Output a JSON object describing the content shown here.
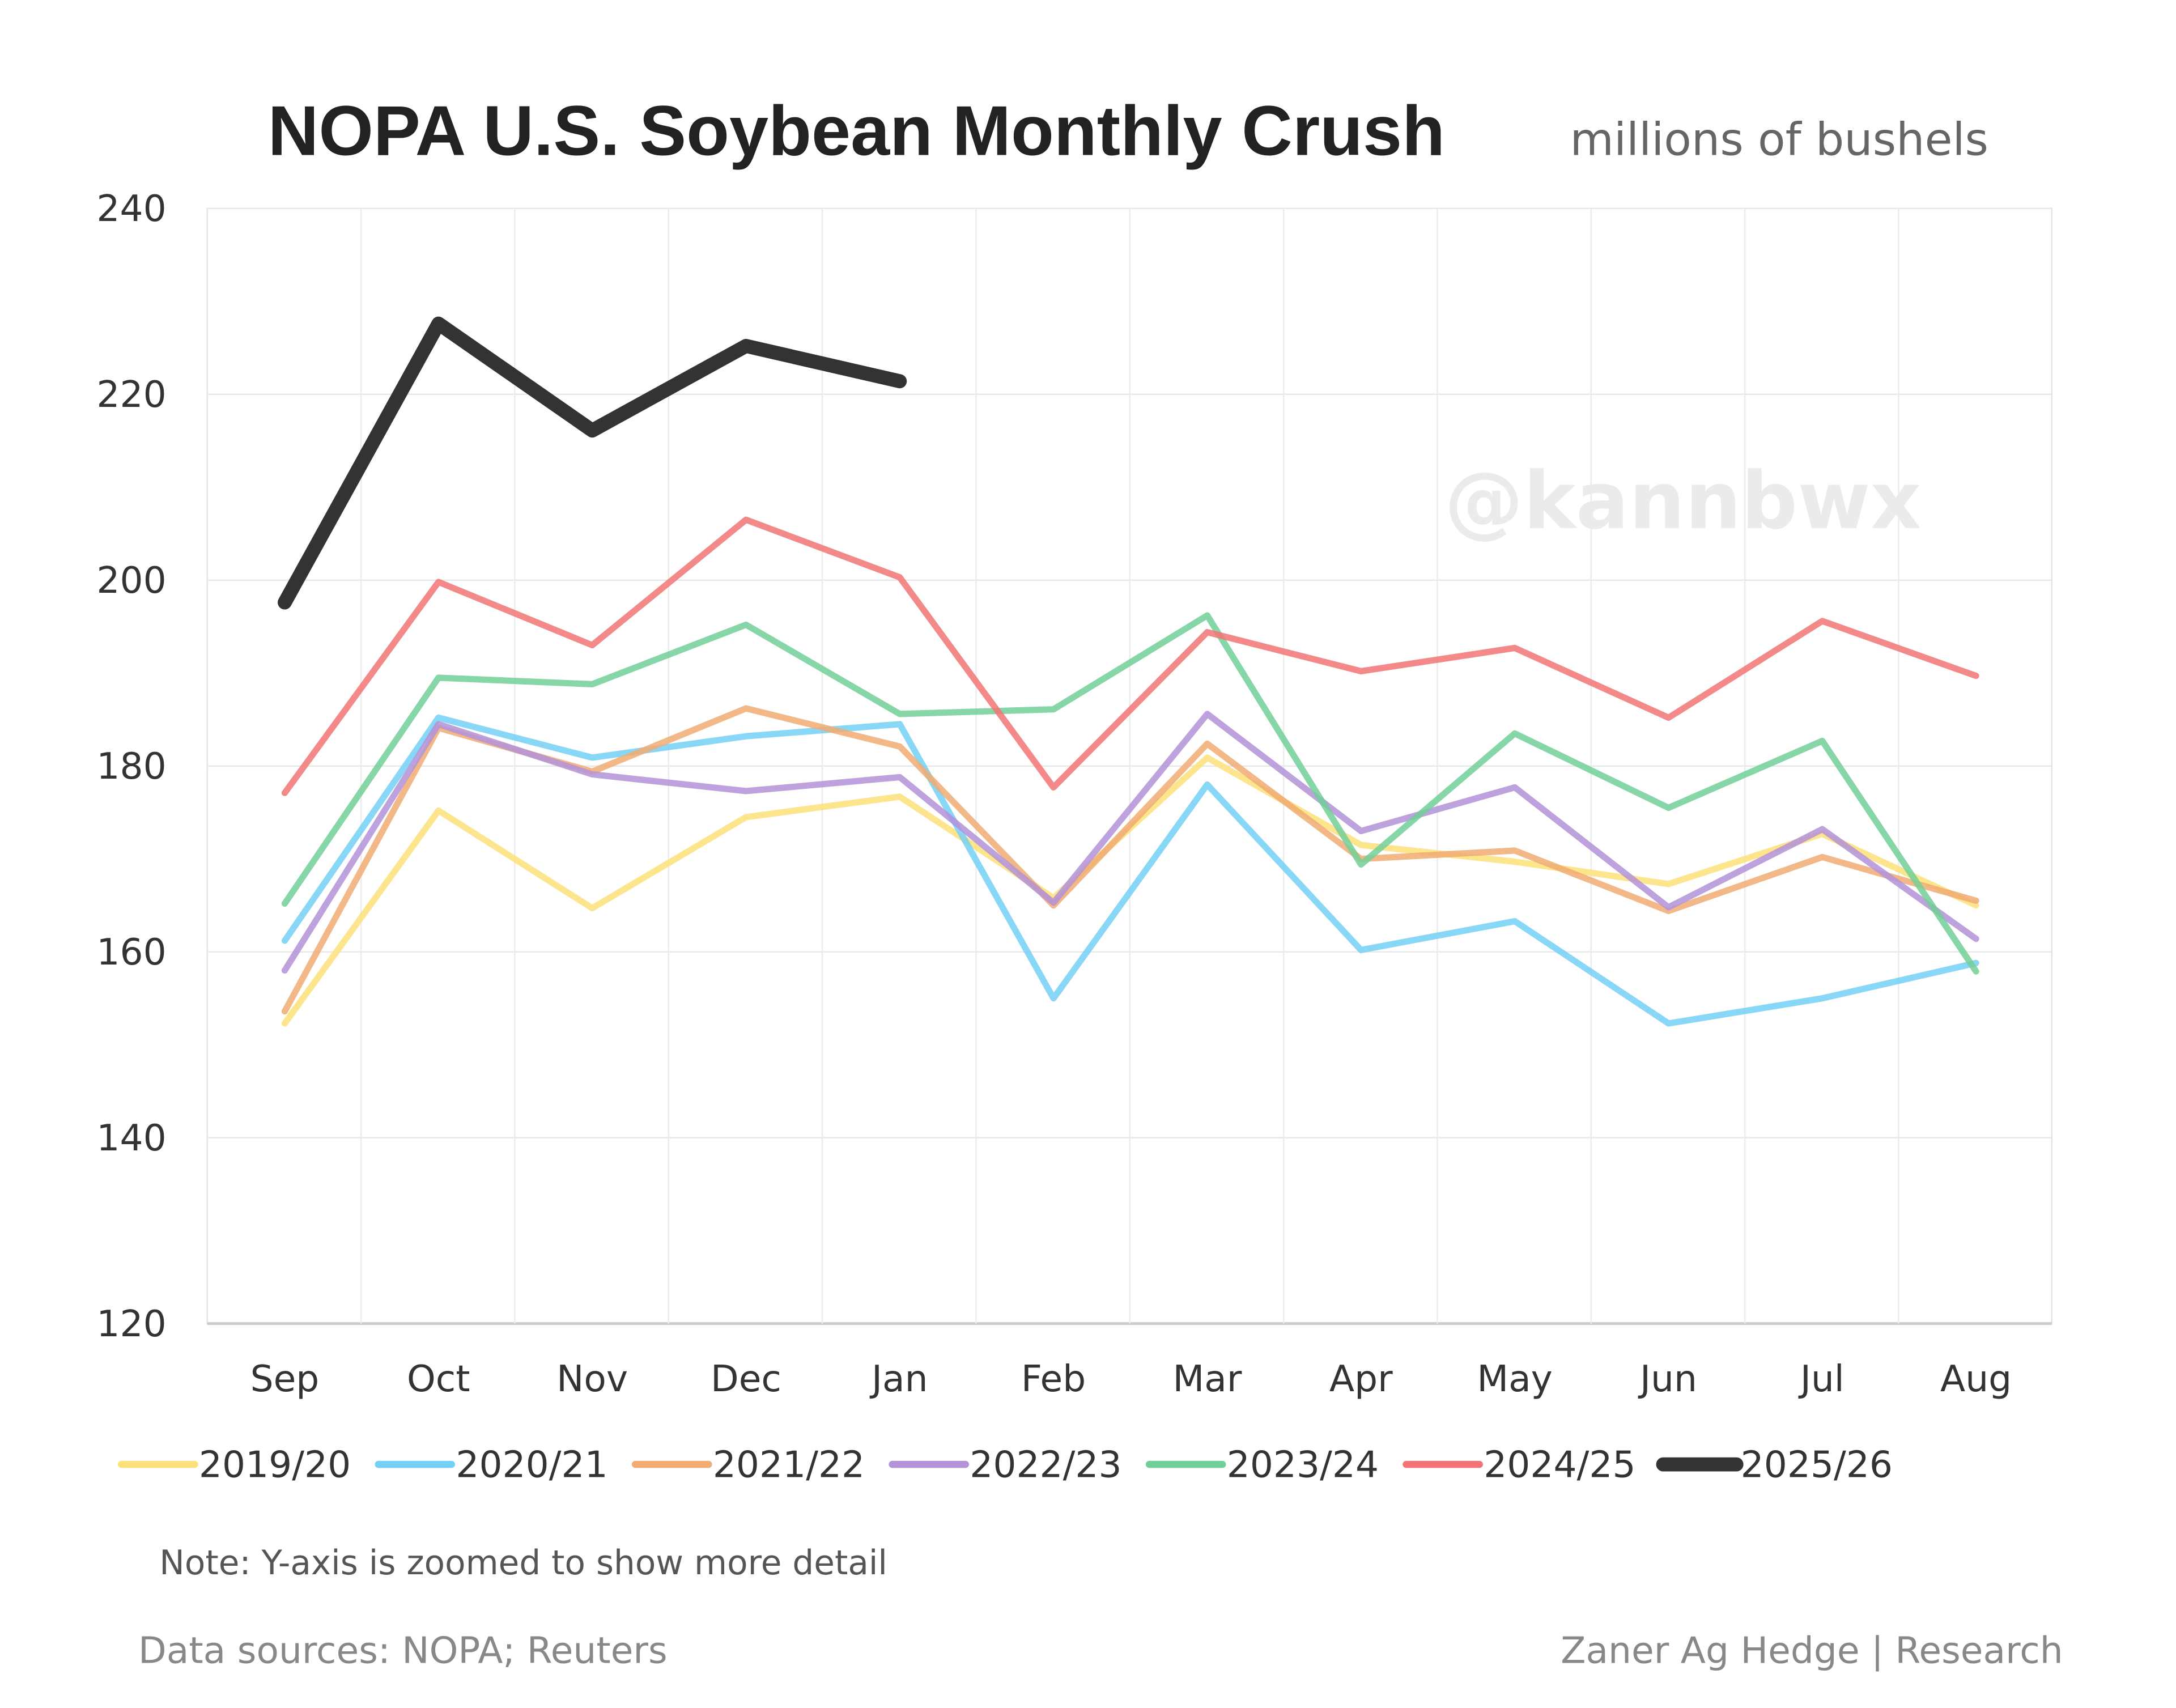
{
  "chart_data": {
    "type": "line",
    "title": "NOPA U.S. Soybean Monthly Crush",
    "subtitle": "millions of bushels",
    "xlabel": "",
    "ylabel": "",
    "ylim": [
      120,
      240
    ],
    "yticks": [
      120,
      140,
      160,
      180,
      200,
      220,
      240
    ],
    "grid": true,
    "legend_position": "bottom",
    "categories": [
      "Sep",
      "Oct",
      "Nov",
      "Dec",
      "Jan",
      "Feb",
      "Mar",
      "Apr",
      "May",
      "Jun",
      "Jul",
      "Aug"
    ],
    "series": [
      {
        "name": "2019/20",
        "color": "#fde07a",
        "values": [
          152.3,
          175.2,
          164.7,
          174.5,
          176.7,
          165.8,
          180.9,
          171.5,
          169.7,
          167.3,
          172.7,
          165.0
        ]
      },
      {
        "name": "2020/21",
        "color": "#74d0f4",
        "values": [
          161.2,
          185.2,
          180.9,
          183.2,
          184.5,
          155.0,
          178.0,
          160.2,
          163.3,
          152.3,
          155.0,
          158.8
        ]
      },
      {
        "name": "2021/22",
        "color": "#f0ac72",
        "values": [
          153.6,
          184.1,
          179.4,
          186.2,
          182.1,
          165.0,
          182.4,
          170.0,
          170.9,
          164.4,
          170.2,
          165.5
        ]
      },
      {
        "name": "2022/23",
        "color": "#b392d8",
        "values": [
          158.0,
          184.5,
          179.1,
          177.3,
          178.8,
          165.3,
          185.6,
          173.0,
          177.7,
          164.8,
          173.2,
          161.4
        ]
      },
      {
        "name": "2023/24",
        "color": "#72cf98",
        "values": [
          165.2,
          189.5,
          188.8,
          195.2,
          185.6,
          186.1,
          196.2,
          169.4,
          183.5,
          175.5,
          182.7,
          157.9
        ]
      },
      {
        "name": "2024/25",
        "color": "#f27474",
        "values": [
          177.1,
          199.8,
          193.0,
          206.5,
          200.3,
          177.7,
          194.4,
          190.2,
          192.7,
          185.2,
          195.6,
          189.7
        ]
      },
      {
        "name": "2025/26",
        "color": "#333333",
        "values": [
          197.6,
          227.6,
          216.1,
          225.2,
          221.4,
          null,
          null,
          null,
          null,
          null,
          null,
          null
        ]
      }
    ]
  },
  "watermark": "@kannbwx",
  "note": "Note: Y-axis is zoomed to show more detail",
  "sources": "Data sources: NOPA; Reuters",
  "credit": "Zaner Ag Hedge | Research"
}
